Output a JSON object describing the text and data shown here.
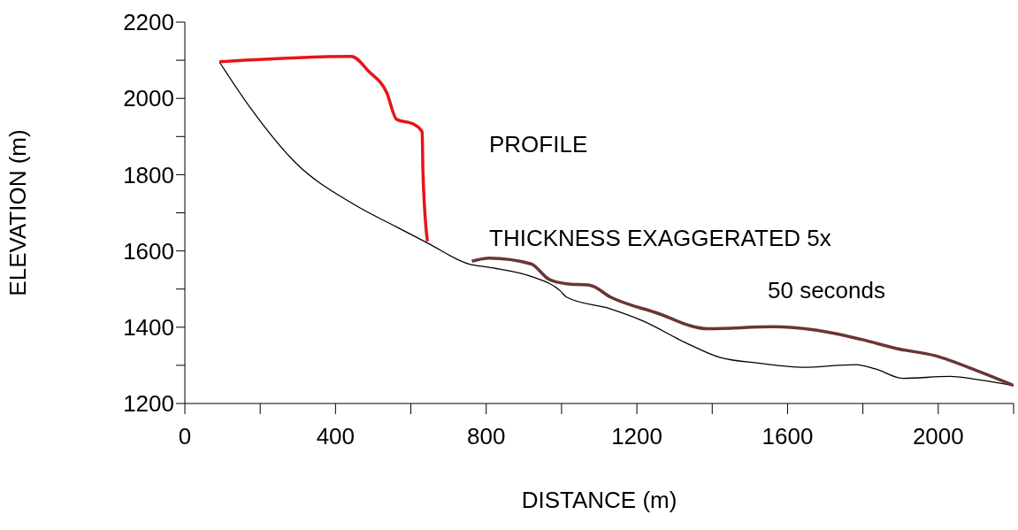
{
  "chart_data": {
    "type": "line",
    "xlabel": "DISTANCE (m)",
    "ylabel": "ELEVATION (m)",
    "xlim": [
      0,
      2200
    ],
    "ylim": [
      1200,
      2200
    ],
    "xticks": [
      0,
      {
        "value": 200,
        "label": null
      },
      400,
      {
        "value": 600,
        "label": null
      },
      800,
      {
        "value": 1000,
        "label": null
      },
      1200,
      {
        "value": 1400,
        "label": null
      },
      1600,
      {
        "value": 1800,
        "label": null
      },
      2000,
      {
        "value": 2200,
        "label": null
      }
    ],
    "yticks": [
      1200,
      {
        "value": 1300,
        "label": null
      },
      1400,
      {
        "value": 1500,
        "label": null
      },
      1600,
      {
        "value": 1700,
        "label": null
      },
      1800,
      {
        "value": 1900,
        "label": null
      },
      2000,
      {
        "value": 2100,
        "label": null
      },
      2200
    ],
    "marker": "none",
    "line_style": "solid",
    "annotations": [
      "PROFILE",
      "THICKNESS EXAGGERATED 5x",
      "50 seconds"
    ],
    "series": [
      {
        "color": "#000000",
        "x": [
          92,
          174,
          291,
          449,
          566,
          644,
          754,
          808,
          919,
          997,
          1013,
          1130,
          1217,
          1326,
          1420,
          1523,
          1640,
          1781,
          1835,
          1906,
          2031,
          2110,
          2200
        ],
        "values": [
          2095,
          1975,
          1834,
          1722,
          1661,
          1621,
          1566,
          1557,
          1533,
          1495,
          1479,
          1448,
          1416,
          1361,
          1321,
          1306,
          1295,
          1302,
          1290,
          1266,
          1271,
          1262,
          1247
        ]
      },
      {
        "color": "#e8141b",
        "x": [
          92,
          442,
          489,
          536,
          562,
          606,
          630,
          632,
          644
        ],
        "values": [
          2096,
          2110,
          2070,
          2015,
          1945,
          1933,
          1912,
          1810,
          1625
        ]
      },
      {
        "color": "#6b3535",
        "x": [
          762,
          808,
          919,
          966,
          1013,
          1076,
          1130,
          1248,
          1389,
          1561,
          1678,
          1796,
          1890,
          1993,
          2110,
          2200
        ],
        "values": [
          1573,
          1581,
          1566,
          1526,
          1514,
          1510,
          1479,
          1439,
          1396,
          1401,
          1392,
          1368,
          1344,
          1325,
          1283,
          1247
        ]
      }
    ]
  }
}
